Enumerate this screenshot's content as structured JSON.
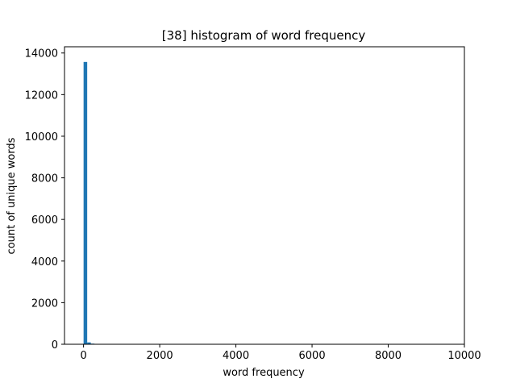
{
  "colors": {
    "bar": "#1f77b4",
    "axes": "#000000",
    "background": "#ffffff"
  },
  "chart_data": {
    "type": "bar",
    "title": "[38] histogram of word frequency",
    "xlabel": "word frequency",
    "ylabel": "count of unique words",
    "xlim": [
      -500,
      10000
    ],
    "ylim": [
      0,
      14300
    ],
    "x_ticks": [
      0,
      2000,
      4000,
      6000,
      8000,
      10000
    ],
    "y_ticks": [
      0,
      2000,
      4000,
      6000,
      8000,
      10000,
      12000,
      14000
    ],
    "bin_width": 95,
    "bin_left_edges": [
      1,
      96,
      191
    ],
    "values": [
      13570,
      90,
      30
    ],
    "grid": false,
    "legend": "none"
  }
}
